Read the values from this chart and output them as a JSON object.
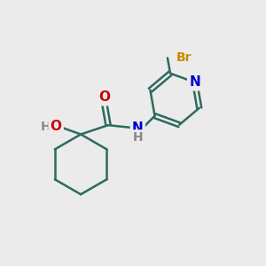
{
  "bg_color": "#ebebeb",
  "bond_color": "#2d6b5e",
  "bond_width": 1.8,
  "atom_colors": {
    "O": "#cc0000",
    "N": "#0000cc",
    "Br": "#cc8800",
    "H": "#888888",
    "C": "#2d6b5e"
  },
  "font_size": 10,
  "fig_size": [
    3.0,
    3.0
  ],
  "dpi": 100
}
